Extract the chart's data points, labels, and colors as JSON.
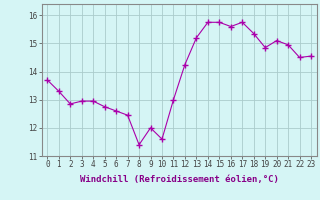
{
  "x": [
    0,
    1,
    2,
    3,
    4,
    5,
    6,
    7,
    8,
    9,
    10,
    11,
    12,
    13,
    14,
    15,
    16,
    17,
    18,
    19,
    20,
    21,
    22,
    23
  ],
  "y": [
    13.7,
    13.3,
    12.85,
    12.95,
    12.95,
    12.75,
    12.6,
    12.45,
    11.4,
    12.0,
    11.6,
    13.0,
    14.25,
    15.2,
    15.75,
    15.75,
    15.6,
    15.75,
    15.35,
    14.85,
    15.1,
    14.95,
    14.5,
    14.55
  ],
  "line_color": "#aa00aa",
  "marker": "+",
  "marker_size": 4,
  "marker_lw": 1.0,
  "line_width": 0.8,
  "bg_color": "#d5f5f5",
  "grid_color": "#aacccc",
  "xlabel": "Windchill (Refroidissement éolien,°C)",
  "xlabel_fontsize": 6.5,
  "ylim": [
    11,
    16.4
  ],
  "xlim": [
    -0.5,
    23.5
  ],
  "yticks": [
    11,
    12,
    13,
    14,
    15,
    16
  ],
  "xtick_labels": [
    "0",
    "1",
    "2",
    "3",
    "4",
    "5",
    "6",
    "7",
    "8",
    "9",
    "10",
    "11",
    "12",
    "13",
    "14",
    "15",
    "16",
    "17",
    "18",
    "19",
    "20",
    "21",
    "22",
    "23"
  ],
  "tick_fontsize": 5.5
}
